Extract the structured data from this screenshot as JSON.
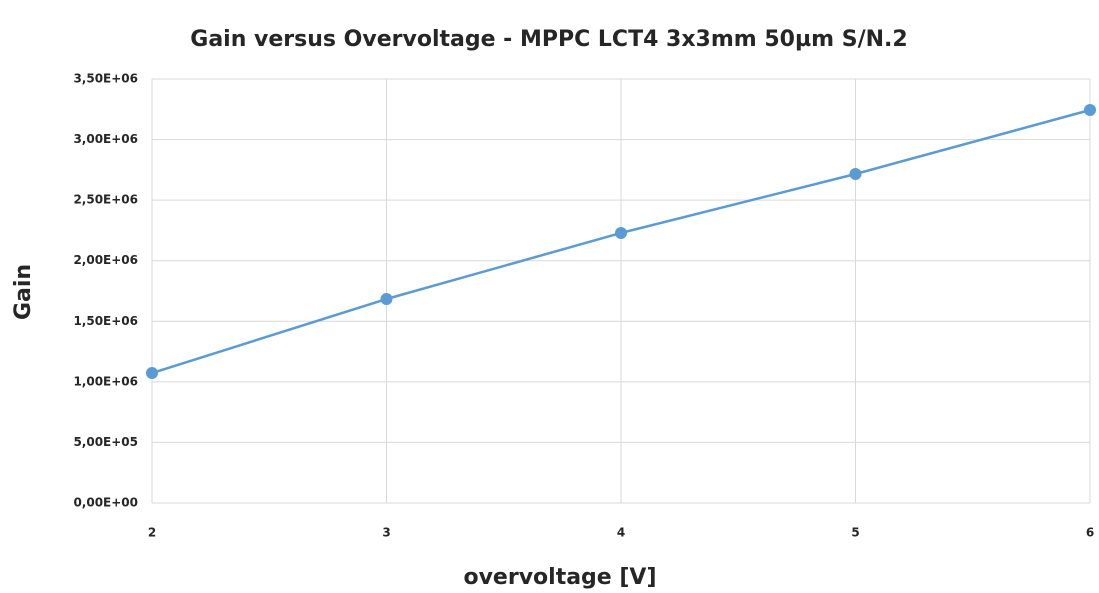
{
  "chart_data": {
    "type": "line",
    "title": "Gain versus Overvoltage - MPPC LCT4 3x3mm 50µm S/N.2",
    "x_label": "overvoltage [V]",
    "y_label": "Gain",
    "x": [
      2,
      3,
      4,
      5,
      6
    ],
    "values": [
      1073000,
      1684000,
      2229000,
      2716000,
      3244000
    ],
    "color": "#5b9bd5",
    "xlim": [
      2,
      6
    ],
    "xticks": [
      2,
      3,
      4,
      5,
      6
    ],
    "ylim": [
      0,
      3500000
    ],
    "yticks": [
      {
        "value": 0,
        "label": "0,00E+00"
      },
      {
        "value": 500000,
        "label": "5,00E+05"
      },
      {
        "value": 1000000,
        "label": "1,00E+06"
      },
      {
        "value": 1500000,
        "label": "1,50E+06"
      },
      {
        "value": 2000000,
        "label": "2,00E+06"
      },
      {
        "value": 2500000,
        "label": "2,50E+06"
      },
      {
        "value": 3000000,
        "label": "3,00E+06"
      },
      {
        "value": 3500000,
        "label": "3,50E+06"
      }
    ],
    "grid": true
  }
}
